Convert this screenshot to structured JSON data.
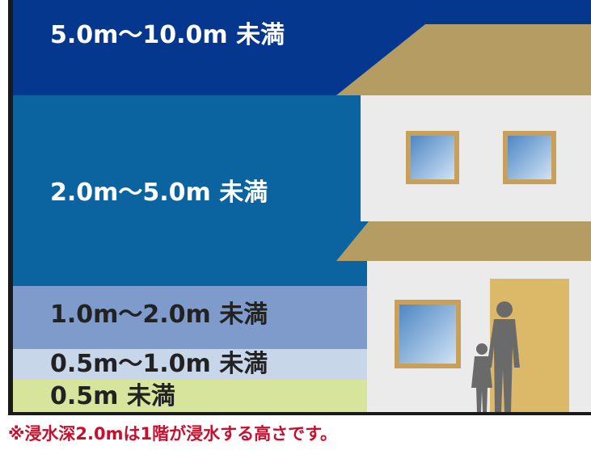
{
  "bands": [
    {
      "label": "5.0m〜10.0m 未満",
      "color": "#06378f",
      "text_color": "#ffffff"
    },
    {
      "label": "2.0m〜5.0m 未満",
      "color": "#0b63a0",
      "text_color": "#ffffff"
    },
    {
      "label": "1.0m〜2.0m 未満",
      "color": "#7e9bcc",
      "text_color": "#222222"
    },
    {
      "label": "0.5m〜1.0m 未満",
      "color": "#c8d6ea",
      "text_color": "#222222"
    },
    {
      "label": "0.5m 未満",
      "color": "#d7e49c",
      "text_color": "#222222"
    }
  ],
  "house": {
    "roof_color": "#b49c63",
    "wall_color": "#ebebeb",
    "window_color": "#8fb8de",
    "door_color": "#dcb869",
    "people_color": "#6a6a6a"
  },
  "footnote": "※浸水深2.0mは1階が浸水する高さです。"
}
